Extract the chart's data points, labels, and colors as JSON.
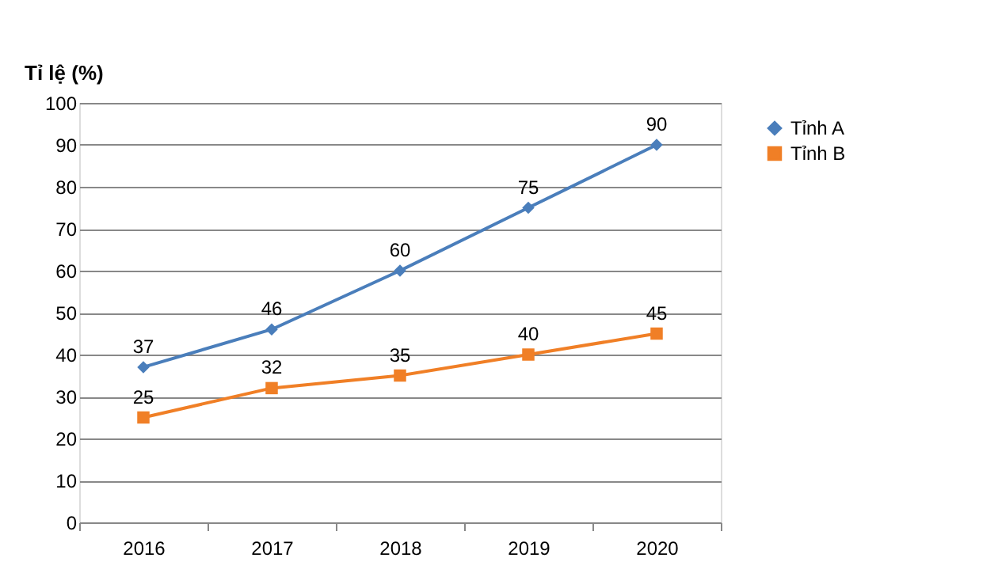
{
  "chart_data": {
    "type": "line",
    "ylabel": "Tỉ lệ (%)",
    "categories": [
      "2016",
      "2017",
      "2018",
      "2019",
      "2020"
    ],
    "series": [
      {
        "name": "Tỉnh A",
        "color": "#4a7ebb",
        "marker": "diamond",
        "values": [
          37,
          46,
          60,
          75,
          90
        ]
      },
      {
        "name": "Tỉnh B",
        "color": "#f07f26",
        "marker": "square",
        "values": [
          25,
          32,
          35,
          40,
          45
        ]
      }
    ],
    "ylim": [
      0,
      100
    ],
    "yticks": [
      0,
      10,
      20,
      30,
      40,
      50,
      60,
      70,
      80,
      90,
      100
    ],
    "grid": "y",
    "legend": "right",
    "data_labels": true,
    "line_style": "solid"
  }
}
